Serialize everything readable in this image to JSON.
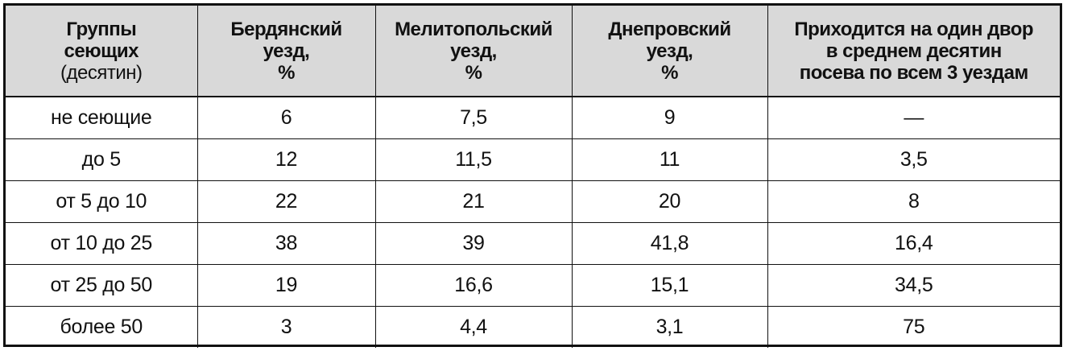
{
  "table": {
    "headers": [
      {
        "lines": [
          "Группы",
          "сеющих"
        ],
        "sub": "(десятин)"
      },
      {
        "lines": [
          "Бердянский",
          "уезд,",
          "%"
        ]
      },
      {
        "lines": [
          "Мелитопольский",
          "уезд,",
          "%"
        ]
      },
      {
        "lines": [
          "Днепровский",
          "уезд,",
          "%"
        ]
      },
      {
        "lines": [
          "Приходится на один двор",
          "в среднем десятин",
          "посева по всем 3 уездам"
        ]
      }
    ],
    "rows": [
      [
        "не сеющие",
        "6",
        "7,5",
        "9",
        "—"
      ],
      [
        "до 5",
        "12",
        "11,5",
        "11",
        "3,5"
      ],
      [
        "от 5 до 10",
        "22",
        "21",
        "20",
        "8"
      ],
      [
        "от 10 до 25",
        "38",
        "39",
        "41,8",
        "16,4"
      ],
      [
        "от 25 до 50",
        "19",
        "16,6",
        "15,1",
        "34,5"
      ],
      [
        "более 50",
        "3",
        "4,4",
        "3,1",
        "75"
      ]
    ]
  }
}
